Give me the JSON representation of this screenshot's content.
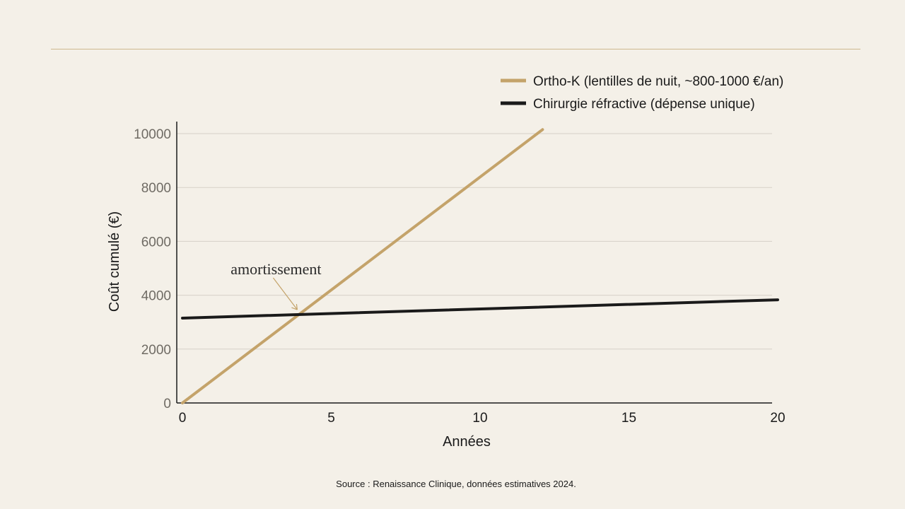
{
  "colors": {
    "background": "#f4f0e8",
    "orthok": "#c4a36a",
    "chirurgie": "#1a1a1a",
    "grid": "#d6d1c8",
    "accent_rule": "#cdb88e"
  },
  "chart_data": {
    "type": "line",
    "xlabel": "Années",
    "ylabel": "Coût cumulé (€)",
    "xlim": [
      0,
      20
    ],
    "ylim": [
      0,
      10000
    ],
    "x_ticks": [
      0,
      5,
      10,
      15,
      20
    ],
    "y_ticks": [
      0,
      2000,
      4000,
      6000,
      8000,
      10000
    ],
    "grid": "horizontal",
    "legend_position": "top-right",
    "series": [
      {
        "name": "Ortho-K (lentilles de nuit, ~800-1000 €/an)",
        "color": "#c4a36a",
        "x": [
          0,
          12.1
        ],
        "y": [
          0,
          10150
        ]
      },
      {
        "name": "Chirurgie réfractive (dépense unique)",
        "color": "#1a1a1a",
        "x": [
          0,
          20
        ],
        "y": [
          3150,
          3830
        ]
      }
    ],
    "annotations": [
      {
        "text": "amortissement",
        "x": 4,
        "y": 3280
      }
    ]
  },
  "source": "Source : Renaissance Clinique, données estimatives 2024."
}
